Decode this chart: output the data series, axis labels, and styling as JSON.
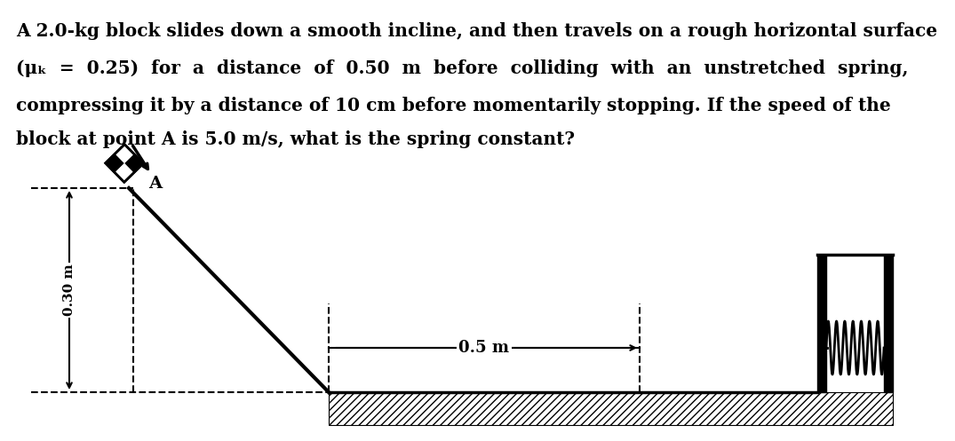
{
  "bg_color": "#ffffff",
  "text_color": "#000000",
  "line1": "A 2.0-kg block slides down a smooth incline, and then travels on a rough horizontal surface",
  "line2": "(μₖ  =  0.25)  for  a  distance  of  0.50  m  before  colliding  with  an  unstretched  spring,",
  "line3": "compressing it by a distance of 10 cm before momentarily stopping. If the speed of the",
  "line4": "block at point A is 5.0 m/s, what is the spring constant?",
  "label_0p5m": "0.5 m",
  "label_0p30m": "0.30 m",
  "label_A": "A",
  "fig_width": 10.75,
  "fig_height": 4.97,
  "dpi": 100
}
